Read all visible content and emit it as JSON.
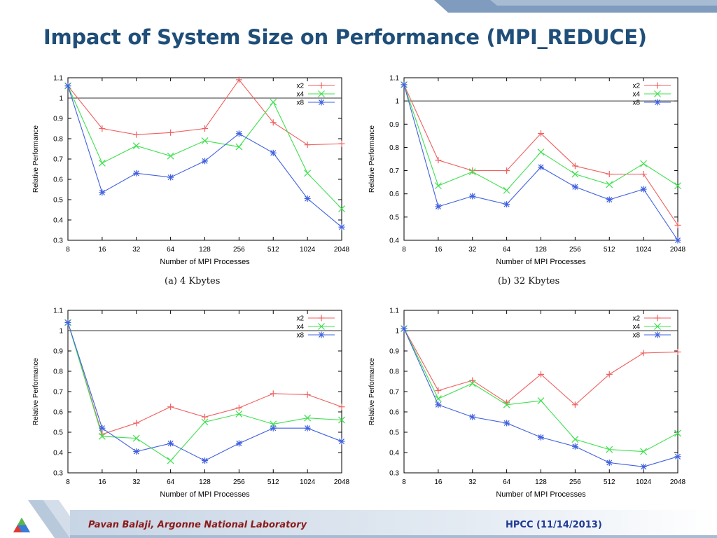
{
  "slide": {
    "title": "Impact of System Size on Performance (MPI_REDUCE)",
    "footer_left": "Pavan Balaji, Argonne National Laboratory",
    "footer_right": "HPCC (11/14/2013)"
  },
  "colors": {
    "x2": "#f06060",
    "x4": "#40e050",
    "x8": "#4060e0",
    "title": "#1f4e79"
  },
  "chart_data": [
    {
      "type": "line",
      "title": "",
      "caption": "(a)  4 Kbytes",
      "xlabel": "Number of MPI Processes",
      "ylabel": "Relative Performance",
      "categories": [
        "8",
        "16",
        "32",
        "64",
        "128",
        "256",
        "512",
        "1024",
        "2048"
      ],
      "ylim": [
        0.3,
        1.1
      ],
      "yticks": [
        "0.3",
        "0.4",
        "0.5",
        "0.6",
        "0.7",
        "0.8",
        "0.9",
        "1",
        "1.1"
      ],
      "reference_line": 1,
      "legend": "top-right",
      "series": [
        {
          "name": "x2",
          "marker": "+",
          "values": [
            1.06,
            0.85,
            0.82,
            0.83,
            0.85,
            1.09,
            0.88,
            0.77,
            0.775
          ]
        },
        {
          "name": "x4",
          "marker": "x",
          "values": [
            1.06,
            0.68,
            0.765,
            0.715,
            0.79,
            0.76,
            0.98,
            0.63,
            0.455
          ]
        },
        {
          "name": "x8",
          "marker": "*",
          "values": [
            1.06,
            0.535,
            0.63,
            0.61,
            0.69,
            0.825,
            0.73,
            0.505,
            0.365
          ]
        }
      ]
    },
    {
      "type": "line",
      "title": "",
      "caption": "(b)  32 Kbytes",
      "xlabel": "Number of MPI Processes",
      "ylabel": "Relative Performance",
      "categories": [
        "8",
        "16",
        "32",
        "64",
        "128",
        "256",
        "512",
        "1024",
        "2048"
      ],
      "ylim": [
        0.4,
        1.1
      ],
      "yticks": [
        "0.4",
        "0.5",
        "0.6",
        "0.7",
        "0.8",
        "0.9",
        "1",
        "1.1"
      ],
      "reference_line": 1,
      "legend": "top-right",
      "series": [
        {
          "name": "x2",
          "marker": "+",
          "values": [
            1.07,
            0.745,
            0.7,
            0.7,
            0.86,
            0.72,
            0.685,
            0.685,
            0.465
          ]
        },
        {
          "name": "x4",
          "marker": "x",
          "values": [
            1.07,
            0.635,
            0.695,
            0.615,
            0.78,
            0.685,
            0.64,
            0.73,
            0.635
          ]
        },
        {
          "name": "x8",
          "marker": "*",
          "values": [
            1.07,
            0.545,
            0.59,
            0.555,
            0.715,
            0.63,
            0.575,
            0.62,
            0.4
          ]
        }
      ]
    },
    {
      "type": "line",
      "title": "",
      "caption": "",
      "xlabel": "Number of MPI Processes",
      "ylabel": "Relative Performance",
      "categories": [
        "8",
        "16",
        "32",
        "64",
        "128",
        "256",
        "512",
        "1024",
        "2048"
      ],
      "ylim": [
        0.3,
        1.1
      ],
      "yticks": [
        "0.3",
        "0.4",
        "0.5",
        "0.6",
        "0.7",
        "0.8",
        "0.9",
        "1",
        "1.1"
      ],
      "reference_line": 1,
      "legend": "top-right",
      "series": [
        {
          "name": "x2",
          "marker": "+",
          "values": [
            1.04,
            0.49,
            0.545,
            0.625,
            0.575,
            0.62,
            0.69,
            0.685,
            0.625
          ]
        },
        {
          "name": "x4",
          "marker": "x",
          "values": [
            1.04,
            0.48,
            0.47,
            0.36,
            0.55,
            0.59,
            0.54,
            0.57,
            0.56
          ]
        },
        {
          "name": "x8",
          "marker": "*",
          "values": [
            1.04,
            0.52,
            0.405,
            0.445,
            0.36,
            0.445,
            0.52,
            0.52,
            0.455
          ]
        }
      ]
    },
    {
      "type": "line",
      "title": "",
      "caption": "",
      "xlabel": "Number of MPI Processes",
      "ylabel": "Relative Performance",
      "categories": [
        "8",
        "16",
        "32",
        "64",
        "128",
        "256",
        "512",
        "1024",
        "2048"
      ],
      "ylim": [
        0.3,
        1.1
      ],
      "yticks": [
        "0.3",
        "0.4",
        "0.5",
        "0.6",
        "0.7",
        "0.8",
        "0.9",
        "1",
        "1.1"
      ],
      "reference_line": 1,
      "legend": "top-right",
      "series": [
        {
          "name": "x2",
          "marker": "+",
          "values": [
            1.01,
            0.705,
            0.755,
            0.645,
            0.785,
            0.635,
            0.785,
            0.89,
            0.895
          ]
        },
        {
          "name": "x4",
          "marker": "x",
          "values": [
            1.01,
            0.665,
            0.74,
            0.635,
            0.655,
            0.465,
            0.415,
            0.405,
            0.495
          ]
        },
        {
          "name": "x8",
          "marker": "*",
          "values": [
            1.01,
            0.635,
            0.575,
            0.545,
            0.475,
            0.43,
            0.35,
            0.33,
            0.38
          ]
        }
      ]
    }
  ]
}
